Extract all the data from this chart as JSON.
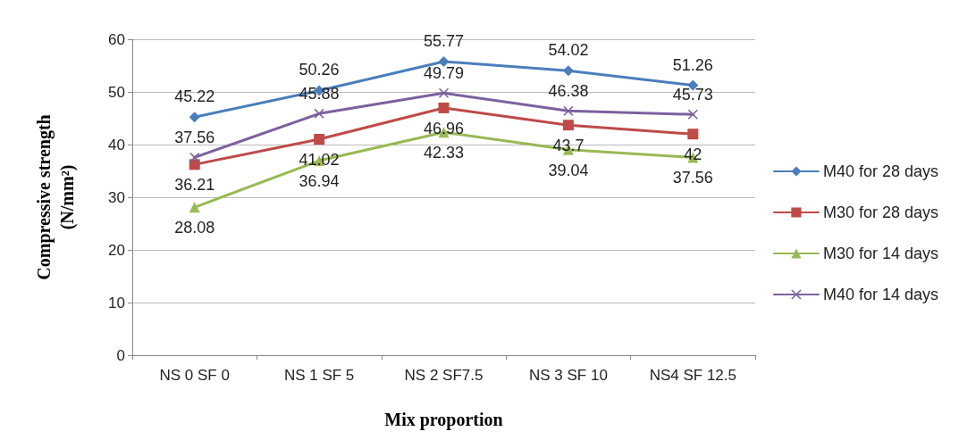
{
  "chart_data": {
    "type": "line",
    "xlabel": "Mix proportion",
    "ylabel": "Compressive strength\n(N/mm²)",
    "categories": [
      "NS 0 SF 0",
      "NS 1 SF 5",
      "NS 2 SF7.5",
      "NS 3 SF 10",
      "NS4 SF 12.5"
    ],
    "series": [
      {
        "name": "M40 for 28 days",
        "color": "#4a7ebb",
        "marker": "diamond",
        "values": [
          45.22,
          50.26,
          55.77,
          54.02,
          51.26
        ]
      },
      {
        "name": "M30 for 28 days",
        "color": "#be4b48",
        "marker": "square",
        "values": [
          36.21,
          41.02,
          46.96,
          43.7,
          42
        ]
      },
      {
        "name": "M30 for 14 days",
        "color": "#98b954",
        "marker": "triangle",
        "values": [
          28.08,
          36.94,
          42.33,
          39.04,
          37.56
        ]
      },
      {
        "name": "M40 for 14 days",
        "color": "#7d60a0",
        "marker": "cross",
        "values": [
          37.56,
          45.88,
          49.79,
          46.38,
          45.73
        ]
      }
    ],
    "ylim": [
      0,
      60
    ],
    "yticks": [
      0,
      10,
      20,
      30,
      40,
      50,
      60
    ],
    "grid": "y",
    "legend": "right",
    "data_labels": true
  }
}
